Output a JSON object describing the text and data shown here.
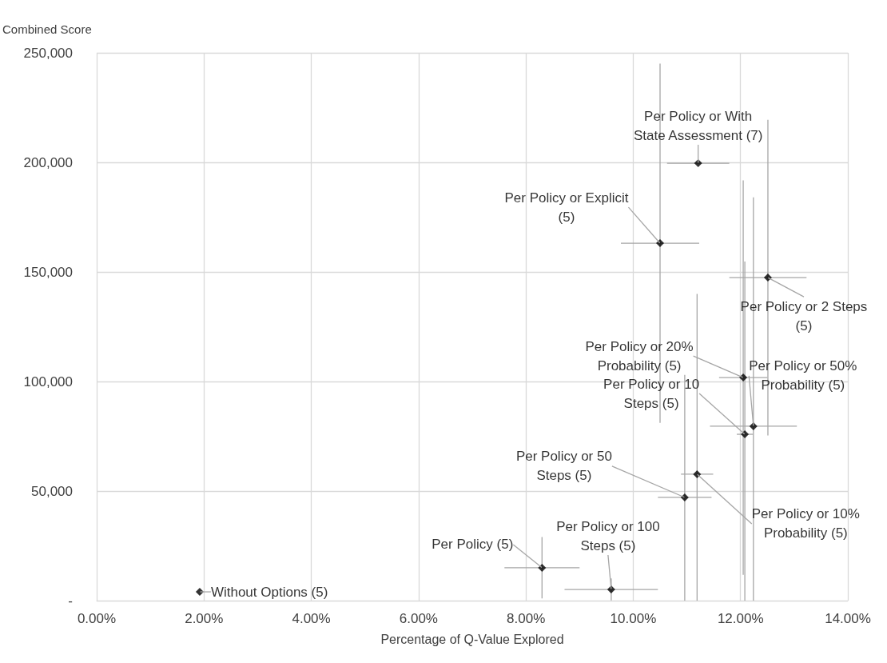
{
  "chart_data": {
    "type": "scatter",
    "xlabel": "Percentage of Q-Value Explored",
    "ylabel": "Combined Score",
    "marker": "diamond",
    "grid": true,
    "xlim": [
      0,
      14
    ],
    "xticks": [
      {
        "value": 0,
        "label": "0.00%"
      },
      {
        "value": 2,
        "label": "2.00%"
      },
      {
        "value": 4,
        "label": "4.00%"
      },
      {
        "value": 6,
        "label": "6.00%"
      },
      {
        "value": 8,
        "label": "8.00%"
      },
      {
        "value": 10,
        "label": "10.00%"
      },
      {
        "value": 12,
        "label": "12.00%"
      },
      {
        "value": 14,
        "label": "14.00%"
      }
    ],
    "ylim": [
      0,
      250000
    ],
    "yticks": [
      {
        "value": 0,
        "label": "-"
      },
      {
        "value": 50000,
        "label": "50,000"
      },
      {
        "value": 100000,
        "label": "100,000"
      },
      {
        "value": 150000,
        "label": "150,000"
      },
      {
        "value": 200000,
        "label": "200,000"
      },
      {
        "value": 250000,
        "label": "250,000"
      }
    ],
    "series": [
      {
        "color": "#000000",
        "x": [
          1.92,
          8.3,
          9.59,
          10.96,
          11.19,
          10.5,
          11.21,
          12.51,
          12.05,
          12.24,
          12.08
        ],
        "values": [
          4000,
          15000,
          5100,
          47100,
          57700,
          163100,
          199600,
          147400,
          101800,
          79600,
          75900
        ],
        "xerrors": [
          null,
          0.7,
          0.87,
          0.5,
          0.3,
          0.73,
          0.58,
          0.72,
          0.45,
          0.81,
          0.15
        ],
        "errors": [
          null,
          14000,
          5000,
          [
            0,
            103000
          ],
          [
            0,
            140000
          ],
          82000,
          null,
          72000,
          90000,
          [
            0,
            184000
          ],
          [
            0,
            154700
          ]
        ]
      }
    ],
    "annotations": [
      {
        "text": "Without Options (5)",
        "x": 1.92,
        "y": 4000
      },
      {
        "text": "Per Policy (5)",
        "x": 8.3,
        "y": 15000
      },
      {
        "text": "Per Policy or 100\nSteps (5)",
        "x": 9.59,
        "y": 5100
      },
      {
        "text": "Per Policy or 50\nSteps (5)",
        "x": 10.96,
        "y": 47100
      },
      {
        "text": "Per Policy or 10%\nProbability (5)",
        "x": 11.19,
        "y": 57700
      },
      {
        "text": "Per Policy or Explicit\n(5)",
        "x": 10.5,
        "y": 163100
      },
      {
        "text": "Per Policy or With\nState Assessment (7)",
        "x": 11.21,
        "y": 199600
      },
      {
        "text": "Per Policy or 2 Steps\n(5)",
        "x": 12.51,
        "y": 147400
      },
      {
        "text": "Per Policy or 20%\nProbability (5)",
        "x": 12.05,
        "y": 101800
      },
      {
        "text": "Per Policy or 50%\nProbability (5)",
        "x": 12.24,
        "y": 79600
      },
      {
        "text": "Per Policy or 10\nSteps (5)",
        "x": 12.08,
        "y": 75900
      }
    ]
  }
}
